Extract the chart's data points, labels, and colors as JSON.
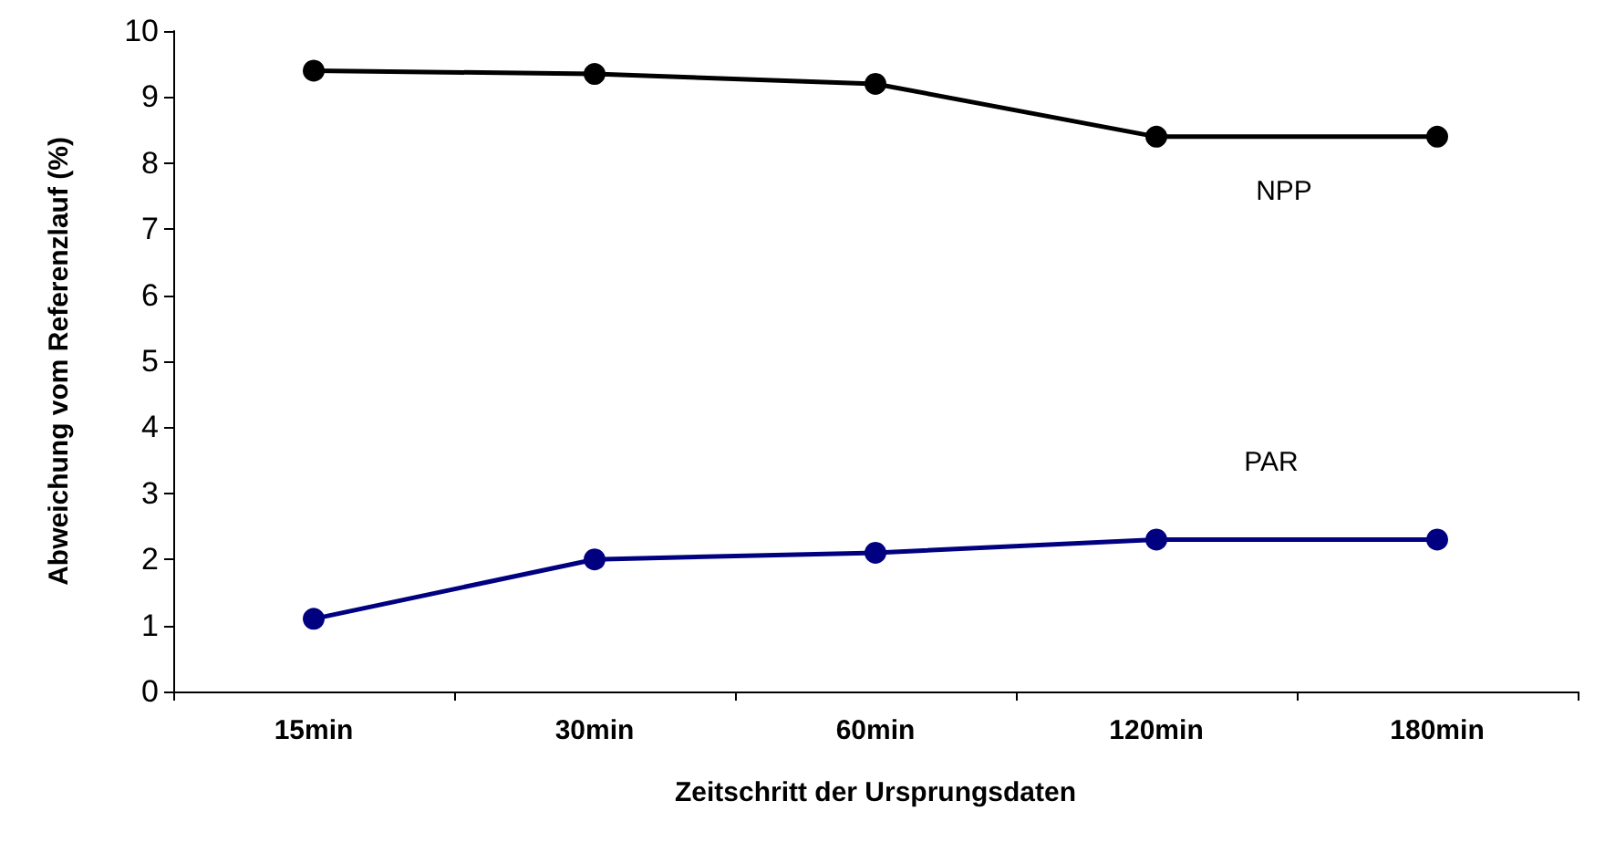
{
  "chart_data": {
    "type": "line",
    "xlabel": "Zeitschritt der Ursprungsdaten",
    "ylabel": "Abweichung vom Referenzlauf (%)",
    "categories": [
      "15min",
      "30min",
      "60min",
      "120min",
      "180min"
    ],
    "series": [
      {
        "name": "NPP",
        "color": "#000000",
        "values": [
          9.4,
          9.35,
          9.2,
          8.4,
          8.4
        ]
      },
      {
        "name": "PAR",
        "color": "#000080",
        "values": [
          1.1,
          2.0,
          2.1,
          2.3,
          2.3
        ]
      }
    ],
    "ylim": [
      0,
      10
    ],
    "yticks": [
      0,
      1,
      2,
      3,
      4,
      5,
      6,
      7,
      8,
      9,
      10
    ],
    "grid": false,
    "legend": false,
    "marker": "circle",
    "line_style": "solid"
  }
}
